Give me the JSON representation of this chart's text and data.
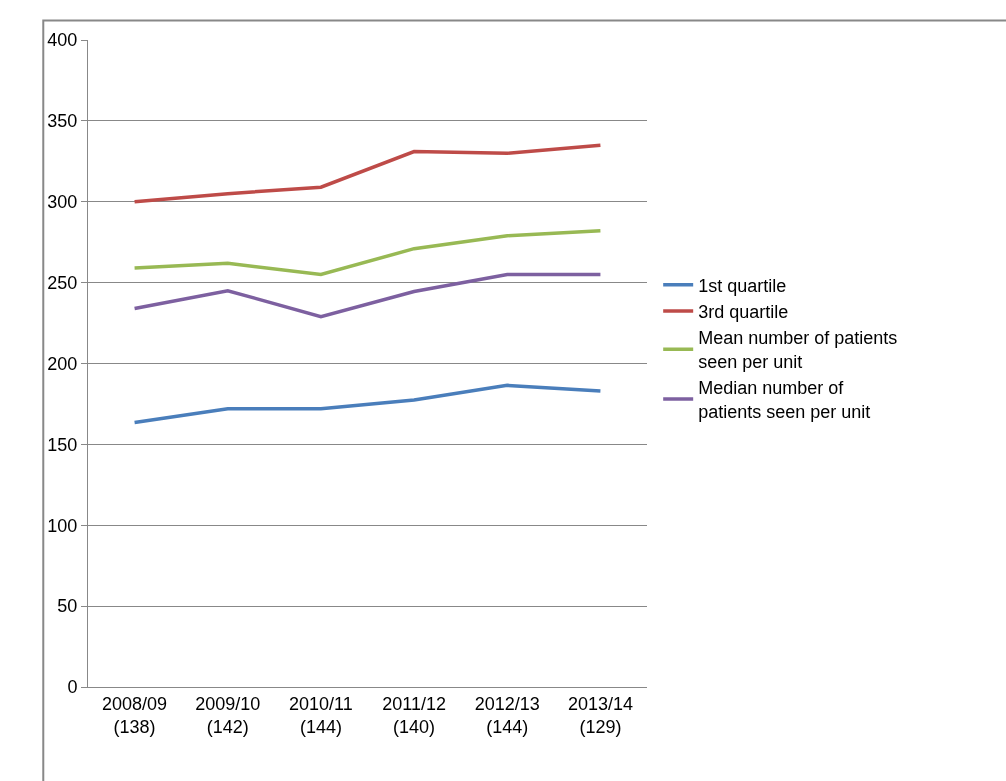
{
  "chart_data": {
    "type": "line",
    "categories": [
      "2008/09\n(138)",
      "2009/10\n(142)",
      "2010/11\n(144)",
      "2011/12\n(140)",
      "2012/13\n(144)",
      "2013/14\n(129)"
    ],
    "series": [
      {
        "name": "1st quartile",
        "color": "#4a7ebb",
        "values": [
          163.5,
          172,
          172,
          177.5,
          186.5,
          183
        ]
      },
      {
        "name": "3rd quartile",
        "color": "#be4b48",
        "values": [
          300,
          305,
          309,
          331,
          330,
          335
        ]
      },
      {
        "name": "Mean number of patients\nseen per unit",
        "color": "#98b954",
        "values": [
          259,
          262,
          255,
          271,
          279,
          282
        ]
      },
      {
        "name": "Median number of\npatients seen per unit",
        "color": "#7d60a0",
        "values": [
          234,
          245,
          229,
          244.5,
          255,
          255
        ]
      }
    ],
    "ylim": [
      0,
      400
    ],
    "yticks": [
      0,
      50,
      100,
      150,
      200,
      250,
      300,
      350,
      400
    ],
    "grid": "y",
    "legend": "right",
    "marker": "none",
    "line_style": "solid"
  }
}
